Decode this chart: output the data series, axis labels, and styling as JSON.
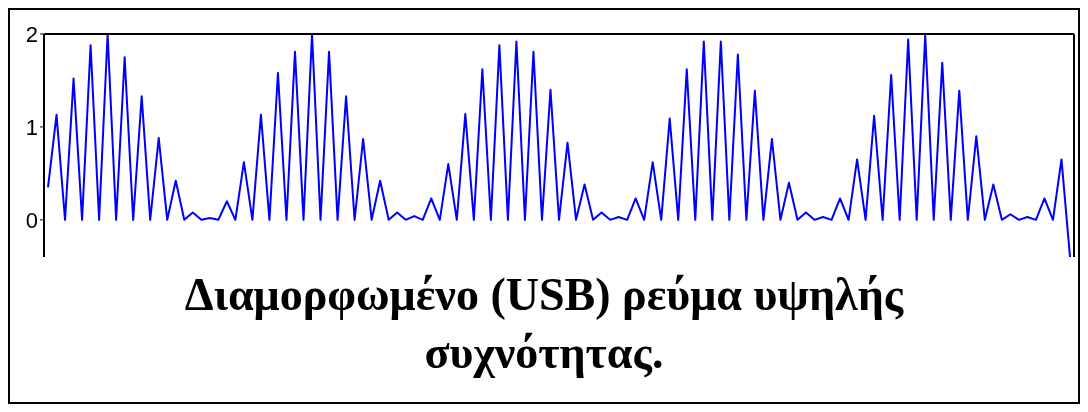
{
  "chart_data": {
    "type": "line",
    "categories": [
      null,
      null,
      null,
      null,
      null,
      null,
      null,
      null,
      null,
      null,
      null,
      null,
      null,
      null,
      null,
      null,
      null,
      null,
      null,
      null,
      null,
      null,
      null,
      null,
      null,
      null,
      null,
      null,
      null,
      null,
      null,
      null,
      null,
      null,
      null,
      null,
      null,
      null,
      null,
      null,
      null,
      null,
      null,
      null,
      null,
      null,
      null,
      null,
      null,
      null,
      null,
      null,
      null,
      null,
      null,
      null,
      null,
      null,
      null,
      null,
      null,
      null,
      null,
      null,
      null,
      null,
      null,
      null,
      null,
      null,
      null,
      null,
      null,
      null,
      null,
      null,
      null,
      null,
      null,
      null,
      null,
      null,
      null,
      null,
      null,
      null,
      null,
      null,
      null,
      null,
      null,
      null,
      null,
      null,
      null,
      null,
      null,
      null,
      null,
      null,
      null,
      null,
      null,
      null,
      null,
      null,
      null,
      null,
      null,
      null,
      null,
      null,
      null,
      null,
      null,
      null,
      null,
      null,
      null,
      null,
      null
    ],
    "series": [
      {
        "color": "#0000ff",
        "values": [
          0.35,
          1.13,
          0,
          1.52,
          0,
          1.88,
          0,
          2.0,
          0,
          1.75,
          0,
          1.33,
          0,
          0.88,
          0,
          0.42,
          0,
          0.08,
          0,
          0.02,
          0,
          0.2,
          0,
          0.62,
          0,
          1.13,
          0,
          1.58,
          0,
          1.81,
          0,
          2.0,
          0,
          1.81,
          0,
          1.33,
          0,
          0.87,
          0,
          0.42,
          0,
          0.08,
          0,
          0.04,
          0,
          0.23,
          0,
          0.6,
          0,
          1.14,
          0,
          1.62,
          0,
          1.88,
          0,
          1.92,
          0,
          1.81,
          0,
          1.4,
          0,
          0.83,
          0,
          0.38,
          0,
          0.08,
          0,
          0.03,
          0,
          0.23,
          0,
          0.62,
          0,
          1.09,
          0,
          1.62,
          0,
          1.92,
          0,
          1.92,
          0,
          1.78,
          0,
          1.39,
          0,
          0.87,
          0,
          0.4,
          0,
          0.08,
          0,
          0.03,
          0,
          0.23,
          0,
          0.65,
          0,
          1.12,
          0,
          1.56,
          0,
          1.94,
          0,
          1.99,
          0,
          1.69,
          0,
          1.39,
          0,
          0.9,
          0,
          0.38,
          0,
          0.06,
          0,
          0.03,
          0,
          0.23,
          0,
          0.65,
          -0.4
        ]
      }
    ],
    "ylim": [
      -0.4,
      2
    ],
    "yticks": [
      0,
      1,
      2
    ],
    "grid": false,
    "marker": "none",
    "line_style": "solid",
    "tick_labels": "y",
    "annotations": [
      "Διαμορφωμένο (USB) ρεύμα υψηλής συχνότητας."
    ]
  }
}
